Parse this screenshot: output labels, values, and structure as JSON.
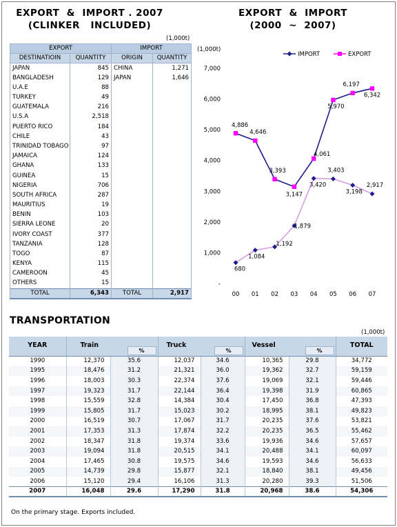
{
  "title_left_1": "EXPORT  &  IMPORT . 2007",
  "title_left_2": "(CLINKER   INCLUDED)",
  "title_right_1": "EXPORT  &  IMPORT",
  "title_right_2": "(2000  ~  2007)",
  "trade_unit": "(1,000t)",
  "chart_unit": "(1,000t)",
  "export_header": "EXPORT",
  "import_header": "IMPORT",
  "col_destination": "DESTINATIOIN",
  "col_quantity": "QUANTITY",
  "col_origin": "ORIGIN",
  "col_import_quantity": "QUANTITY",
  "exports": [
    {
      "country": "JAPAN",
      "qty": "845"
    },
    {
      "country": "BANGLADESH",
      "qty": "129"
    },
    {
      "country": "U.A.E",
      "qty": "88"
    },
    {
      "country": "TURKEY",
      "qty": "49"
    },
    {
      "country": "GUATEMALA",
      "qty": "216"
    },
    {
      "country": "U.S.A",
      "qty": "2,518"
    },
    {
      "country": "PUERTO RICO",
      "qty": "184"
    },
    {
      "country": "CHILE",
      "qty": "43"
    },
    {
      "country": "TRINIDAD TOBAGO",
      "qty": "97"
    },
    {
      "country": "JAMAICA",
      "qty": "124"
    },
    {
      "country": "GHANA",
      "qty": "133"
    },
    {
      "country": "GUINEA",
      "qty": "15"
    },
    {
      "country": "NIGERIA",
      "qty": "706"
    },
    {
      "country": "SOUTH AFRICA",
      "qty": "287"
    },
    {
      "country": "MAURITIUS",
      "qty": "19"
    },
    {
      "country": "BENIN",
      "qty": "103"
    },
    {
      "country": "SIERRA LEONE",
      "qty": "20"
    },
    {
      "country": "IVORY COAST",
      "qty": "377"
    },
    {
      "country": "TANZANIA",
      "qty": "128"
    },
    {
      "country": "TOGO",
      "qty": "87"
    },
    {
      "country": "KENYA",
      "qty": "115"
    },
    {
      "country": "CAMEROON",
      "qty": "45"
    },
    {
      "country": "OTHERS",
      "qty": "15"
    }
  ],
  "imports": [
    {
      "country": "CHINA",
      "qty": "1,271"
    },
    {
      "country": "JAPAN",
      "qty": "1,646"
    }
  ],
  "export_total_label": "TOTAL",
  "export_total": "6,343",
  "import_total_label": "TOTAL",
  "import_total": "2,917",
  "chart_data": {
    "type": "line",
    "x": [
      "00",
      "01",
      "02",
      "03",
      "04",
      "05",
      "06",
      "07"
    ],
    "ylim": [
      0,
      7000
    ],
    "yticks": [
      "-",
      "1,000",
      "2,000",
      "3,000",
      "4,000",
      "5,000",
      "6,000",
      "7,000"
    ],
    "legend_position": "top-right",
    "series": [
      {
        "name": "IMPORT",
        "color": "#1c1c8c",
        "values": [
          680,
          1084,
          1192,
          1879,
          3420,
          3403,
          3198,
          2917
        ],
        "labels": [
          "680",
          "1,084",
          "1,192",
          "1,879",
          "3,420",
          "3,403",
          "3,198",
          "2,917"
        ]
      },
      {
        "name": "EXPORT",
        "color": "#ff00ff",
        "values": [
          4886,
          4646,
          3393,
          3147,
          4061,
          5970,
          6197,
          6342
        ],
        "labels": [
          "4,886",
          "4,646",
          "3,393",
          "3,147",
          "4,061",
          "5,970",
          "6,197",
          "6,342"
        ]
      }
    ]
  },
  "transport_title": "TRANSPORTATION",
  "transport_unit": "(1,000t)",
  "transport_headers": {
    "year": "YEAR",
    "train": "Train",
    "truck": "Truck",
    "vessel": "Vessel",
    "total": "TOTAL",
    "pct": "%"
  },
  "transport_rows": [
    {
      "year": "1990",
      "train": "12,370",
      "train_pct": "35.6",
      "truck": "12,037",
      "truck_pct": "34.6",
      "vessel": "10,365",
      "vessel_pct": "29.8",
      "total": "34,772"
    },
    {
      "year": "1995",
      "train": "18,476",
      "train_pct": "31.2",
      "truck": "21,321",
      "truck_pct": "36.0",
      "vessel": "19,362",
      "vessel_pct": "32.7",
      "total": "59,159"
    },
    {
      "year": "1996",
      "train": "18,003",
      "train_pct": "30.3",
      "truck": "22,374",
      "truck_pct": "37.6",
      "vessel": "19,069",
      "vessel_pct": "32.1",
      "total": "59,446"
    },
    {
      "year": "1997",
      "train": "19,323",
      "train_pct": "31.7",
      "truck": "22,144",
      "truck_pct": "36.4",
      "vessel": "19,398",
      "vessel_pct": "31.9",
      "total": "60,865"
    },
    {
      "year": "1998",
      "train": "15,559",
      "train_pct": "32.8",
      "truck": "14,384",
      "truck_pct": "30.4",
      "vessel": "17,450",
      "vessel_pct": "36.8",
      "total": "47,393"
    },
    {
      "year": "1999",
      "train": "15,805",
      "train_pct": "31.7",
      "truck": "15,023",
      "truck_pct": "30.2",
      "vessel": "18,995",
      "vessel_pct": "38.1",
      "total": "49,823"
    },
    {
      "year": "2000",
      "train": "16,519",
      "train_pct": "30.7",
      "truck": "17,067",
      "truck_pct": "31.7",
      "vessel": "20,235",
      "vessel_pct": "37.6",
      "total": "53,821"
    },
    {
      "year": "2001",
      "train": "17,353",
      "train_pct": "31.3",
      "truck": "17,874",
      "truck_pct": "32.2",
      "vessel": "20,235",
      "vessel_pct": "36.5",
      "total": "55,462"
    },
    {
      "year": "2002",
      "train": "18,347",
      "train_pct": "31.8",
      "truck": "19,374",
      "truck_pct": "33.6",
      "vessel": "19,936",
      "vessel_pct": "34.6",
      "total": "57,657"
    },
    {
      "year": "2003",
      "train": "19,094",
      "train_pct": "31.8",
      "truck": "20,515",
      "truck_pct": "34.1",
      "vessel": "20,488",
      "vessel_pct": "34.1",
      "total": "60,097"
    },
    {
      "year": "2004",
      "train": "17,465",
      "train_pct": "30.8",
      "truck": "19,575",
      "truck_pct": "34.6",
      "vessel": "19,593",
      "vessel_pct": "34.6",
      "total": "56,633"
    },
    {
      "year": "2005",
      "train": "14,739",
      "train_pct": "29.8",
      "truck": "15,877",
      "truck_pct": "32.1",
      "vessel": "18,840",
      "vessel_pct": "38.1",
      "total": "49,456"
    },
    {
      "year": "2006",
      "train": "15,120",
      "train_pct": "29.4",
      "truck": "16,106",
      "truck_pct": "31.3",
      "vessel": "20,280",
      "vessel_pct": "39.3",
      "total": "51,506"
    },
    {
      "year": "2007",
      "train": "16,048",
      "train_pct": "29.6",
      "truck": "17,290",
      "truck_pct": "31.8",
      "vessel": "20,968",
      "vessel_pct": "38.6",
      "total": "54,306"
    }
  ],
  "footnote": "On the primary stage.  Exports included."
}
